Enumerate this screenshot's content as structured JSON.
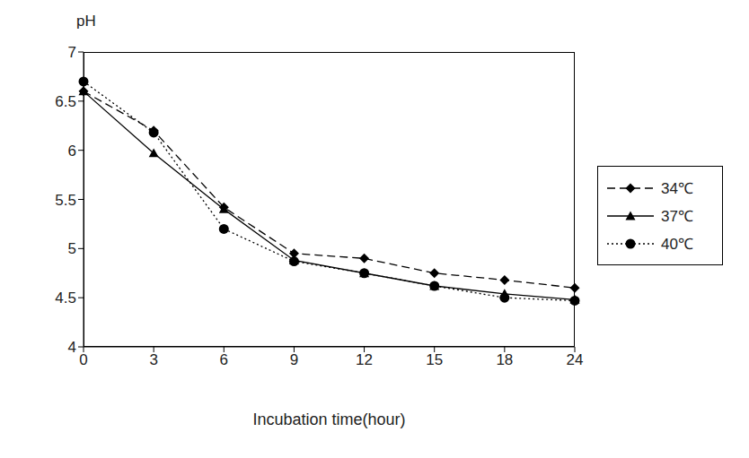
{
  "chart_data": {
    "type": "line",
    "y_label": "pH",
    "x_label": "Incubation time(hour)",
    "categories": [
      "0",
      "3",
      "6",
      "9",
      "12",
      "15",
      "18",
      "24"
    ],
    "series": [
      {
        "name": "34℃",
        "color": "#000000",
        "marker": "diamond",
        "line_style": "dashed",
        "values": [
          6.6,
          6.2,
          5.42,
          4.95,
          4.9,
          4.75,
          4.68,
          4.6
        ]
      },
      {
        "name": "37℃",
        "color": "#000000",
        "marker": "triangle",
        "line_style": "solid",
        "values": [
          6.6,
          5.97,
          5.4,
          4.88,
          4.75,
          4.62,
          4.54,
          4.48
        ]
      },
      {
        "name": "40℃",
        "color": "#000000",
        "marker": "circle",
        "line_style": "dotted",
        "values": [
          6.7,
          6.18,
          5.2,
          4.87,
          4.75,
          4.62,
          4.5,
          4.47
        ]
      }
    ],
    "ylim": [
      4,
      7
    ],
    "yticks": [
      4,
      4.5,
      5,
      5.5,
      6,
      6.5,
      7
    ],
    "grid": false,
    "legend": "right"
  }
}
